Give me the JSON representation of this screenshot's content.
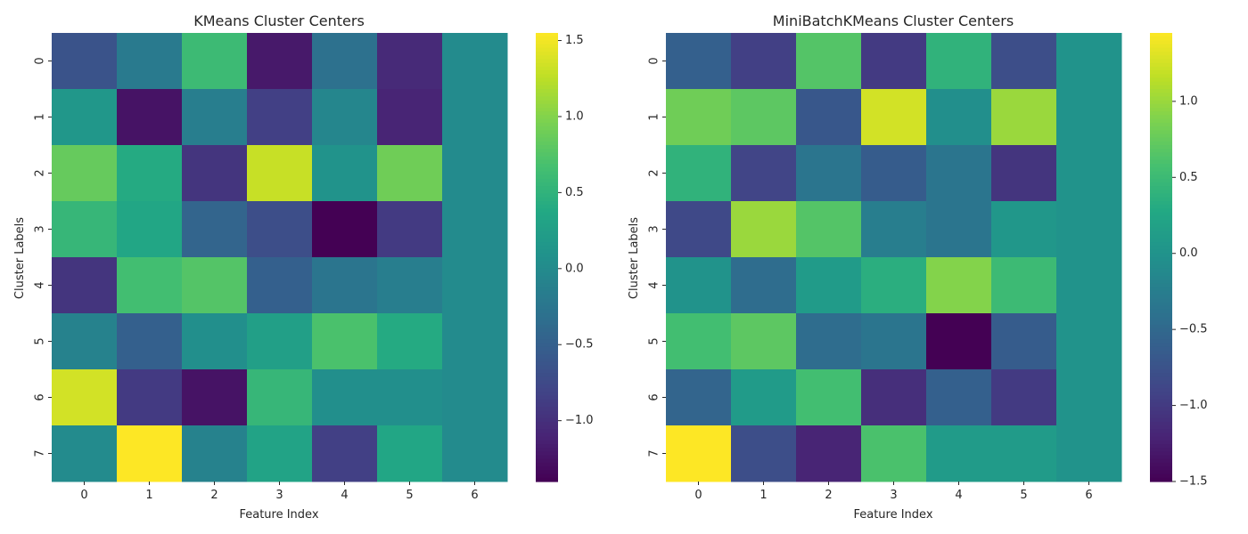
{
  "chart_data": [
    {
      "type": "heatmap",
      "title": "KMeans Cluster Centers",
      "xlabel": "Feature Index",
      "ylabel": "Cluster Labels",
      "x_categories": [
        "0",
        "1",
        "2",
        "3",
        "4",
        "5",
        "6"
      ],
      "y_categories": [
        "0",
        "1",
        "2",
        "3",
        "4",
        "5",
        "6",
        "7"
      ],
      "colormap": "viridis",
      "vmin": -1.4,
      "vmax": 1.55,
      "colorbar_ticks": [
        "1.5",
        "1.0",
        "0.5",
        "0.0",
        "−0.5",
        "−1.0"
      ],
      "colorbar_tick_values": [
        1.5,
        1.0,
        0.5,
        0.0,
        -0.5,
        -1.0
      ],
      "values": [
        [
          -0.65,
          -0.2,
          0.6,
          -1.2,
          -0.3,
          -1.05,
          0.0
        ],
        [
          0.15,
          -1.25,
          -0.15,
          -0.85,
          -0.05,
          -1.1,
          0.0
        ],
        [
          0.85,
          0.4,
          -0.95,
          1.3,
          0.1,
          0.9,
          0.0
        ],
        [
          0.55,
          0.35,
          -0.45,
          -0.7,
          -1.4,
          -0.9,
          0.0
        ],
        [
          -0.95,
          0.65,
          0.75,
          -0.5,
          -0.25,
          -0.15,
          0.0
        ],
        [
          -0.1,
          -0.5,
          0.05,
          0.25,
          0.7,
          0.4,
          0.0
        ],
        [
          1.35,
          -0.9,
          -1.25,
          0.55,
          0.05,
          0.05,
          0.0
        ],
        [
          0.0,
          1.55,
          -0.1,
          0.3,
          -0.85,
          0.35,
          0.0
        ]
      ]
    },
    {
      "type": "heatmap",
      "title": "MiniBatchKMeans Cluster Centers",
      "xlabel": "Feature Index",
      "ylabel": "Cluster Labels",
      "x_categories": [
        "0",
        "1",
        "2",
        "3",
        "4",
        "5",
        "6"
      ],
      "y_categories": [
        "0",
        "1",
        "2",
        "3",
        "4",
        "5",
        "6",
        "7"
      ],
      "colormap": "viridis",
      "vmin": -1.5,
      "vmax": 1.45,
      "colorbar_ticks": [
        "1.0",
        "0.5",
        "0.0",
        "−0.5",
        "−1.0",
        "−1.5"
      ],
      "colorbar_tick_values": [
        1.0,
        0.5,
        0.0,
        -0.5,
        -1.0,
        -1.5
      ],
      "values": [
        [
          -0.6,
          -0.95,
          0.65,
          -1.0,
          0.4,
          -0.8,
          0.0
        ],
        [
          0.8,
          0.7,
          -0.7,
          1.25,
          -0.05,
          1.0,
          0.0
        ],
        [
          0.4,
          -0.9,
          -0.35,
          -0.65,
          -0.35,
          -1.05,
          0.0
        ],
        [
          -0.85,
          1.0,
          0.65,
          -0.25,
          -0.35,
          0.05,
          0.0
        ],
        [
          0.0,
          -0.45,
          0.1,
          0.35,
          0.9,
          0.5,
          0.0
        ],
        [
          0.55,
          0.7,
          -0.45,
          -0.35,
          -1.5,
          -0.65,
          0.0
        ],
        [
          -0.55,
          0.1,
          0.55,
          -1.1,
          -0.6,
          -1.0,
          0.0
        ],
        [
          1.45,
          -0.8,
          -1.2,
          0.6,
          0.1,
          0.1,
          0.0
        ]
      ]
    }
  ]
}
